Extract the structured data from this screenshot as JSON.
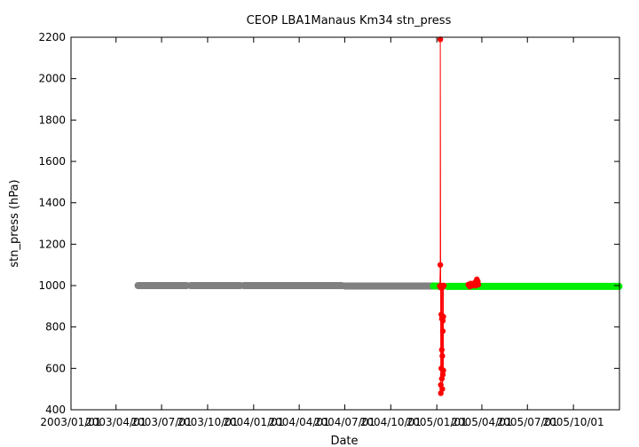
{
  "chart_data": {
    "type": "scatter",
    "title": "CEOP LBA1Manaus Km34  stn_press",
    "xlabel": "Date",
    "ylabel": "stn_press (hPa)",
    "ylim": [
      400,
      2200
    ],
    "yticks": [
      400,
      600,
      800,
      1000,
      1200,
      1400,
      1600,
      1800,
      2000,
      2200
    ],
    "xlim": [
      "2003/01/01",
      "2006/01/01"
    ],
    "xtick_labels": [
      "2003/01/01",
      "2003/04/01",
      "2003/07/01",
      "2003/10/01",
      "2004/01/01",
      "2004/04/01",
      "2004/07/01",
      "2004/10/01",
      "2005/01/01",
      "2005/04/01",
      "2005/07/01",
      "2005/10/01"
    ],
    "grid": false,
    "legend": "none",
    "series": [
      {
        "color": "#808080",
        "segments": [
          {
            "x_start": "2003/05/15",
            "x_end": "2003/08/20",
            "y": 1000
          },
          {
            "x_start": "2003/08/28",
            "x_end": "2003/12/05",
            "y": 1000
          },
          {
            "x_start": "2003/12/12",
            "x_end": "2004/06/25",
            "y": 1000
          },
          {
            "x_start": "2004/07/01",
            "x_end": "2004/12/31",
            "y": 998
          }
        ]
      },
      {
        "color": "#00ee00",
        "segments": [
          {
            "x_start": "2004/12/25",
            "x_end": "2005/01/05",
            "y": 998
          },
          {
            "x_start": "2005/01/22",
            "x_end": "2005/12/31",
            "y": 996
          }
        ]
      },
      {
        "color": "#ff0000",
        "connected": true,
        "points": [
          [
            "2005/01/07",
            998
          ],
          [
            "2005/01/08",
            1100
          ],
          [
            "2005/01/08",
            2190
          ],
          [
            "2005/01/09",
            480
          ],
          [
            "2005/01/09",
            990
          ],
          [
            "2005/01/09",
            520
          ],
          [
            "2005/01/10",
            860
          ],
          [
            "2005/01/10",
            600
          ],
          [
            "2005/01/10",
            1000
          ],
          [
            "2005/01/11",
            690
          ],
          [
            "2005/01/11",
            550
          ],
          [
            "2005/01/11",
            840
          ],
          [
            "2005/01/12",
            660
          ],
          [
            "2005/01/12",
            990
          ],
          [
            "2005/01/12",
            500
          ],
          [
            "2005/01/13",
            570
          ],
          [
            "2005/01/13",
            830
          ],
          [
            "2005/01/13",
            780
          ],
          [
            "2005/01/14",
            590
          ],
          [
            "2005/01/14",
            850
          ],
          [
            "2005/01/14",
            1000
          ],
          [
            "2005/01/15",
            1000
          ]
        ]
      },
      {
        "color": "#ff0000",
        "connected": false,
        "points": [
          [
            "2005/03/05",
            1005
          ],
          [
            "2005/03/08",
            995
          ],
          [
            "2005/03/10",
            1010
          ],
          [
            "2005/03/13",
            1000
          ],
          [
            "2005/03/15",
            1005
          ],
          [
            "2005/03/18",
            1015
          ],
          [
            "2005/03/20",
            1000
          ],
          [
            "2005/03/22",
            1030
          ],
          [
            "2005/03/24",
            1020
          ],
          [
            "2005/03/25",
            1005
          ]
        ]
      }
    ]
  }
}
